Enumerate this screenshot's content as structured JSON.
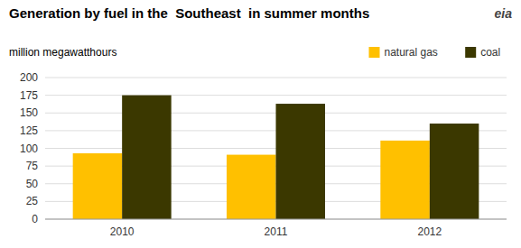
{
  "chart_data": {
    "type": "bar",
    "title": "Generation by fuel in the  Southeast  in summer months",
    "subtitle": "million megawatthours",
    "annotations": [
      "eia"
    ],
    "categories": [
      "2010",
      "2011",
      "2012"
    ],
    "series": [
      {
        "name": "natural gas",
        "color": "#FFC000",
        "values": [
          93,
          91,
          111
        ]
      },
      {
        "name": "coal",
        "color": "#3B3800",
        "values": [
          175,
          163,
          135
        ]
      }
    ],
    "ylim": [
      0,
      200
    ],
    "yticks": [
      0,
      25,
      50,
      75,
      100,
      125,
      150,
      175,
      200
    ],
    "grid": true,
    "legend": "upper right"
  }
}
